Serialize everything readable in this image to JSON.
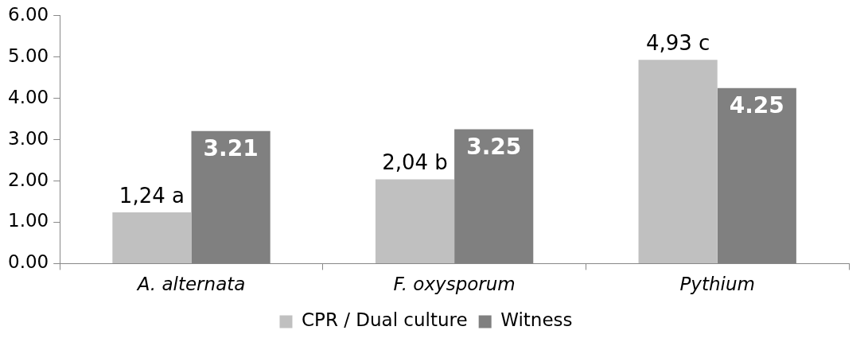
{
  "chart_data": {
    "type": "bar",
    "categories": [
      "A. alternata",
      "F. oxysporum",
      "Pythium"
    ],
    "series": [
      {
        "name": "CPR / Dual culture",
        "color": "#c0c0c0",
        "values": [
          1.24,
          2.04,
          4.93
        ],
        "value_labels": [
          "1,24 a",
          "2,04 b",
          "4,93 c"
        ]
      },
      {
        "name": "Witness",
        "color": "#808080",
        "values": [
          3.21,
          3.25,
          4.25
        ],
        "value_labels": [
          "3.21",
          "3.25",
          "4.25"
        ]
      }
    ],
    "ylim": [
      0,
      6
    ],
    "yticks": [
      {
        "value": 0,
        "label": "0.00"
      },
      {
        "value": 1,
        "label": "1.00"
      },
      {
        "value": 2,
        "label": "2.00"
      },
      {
        "value": 3,
        "label": "3.00"
      },
      {
        "value": 4,
        "label": "4.00"
      },
      {
        "value": 5,
        "label": "5.00"
      },
      {
        "value": 6,
        "label": "6.00"
      }
    ],
    "grid": false,
    "legend": "bottom"
  }
}
